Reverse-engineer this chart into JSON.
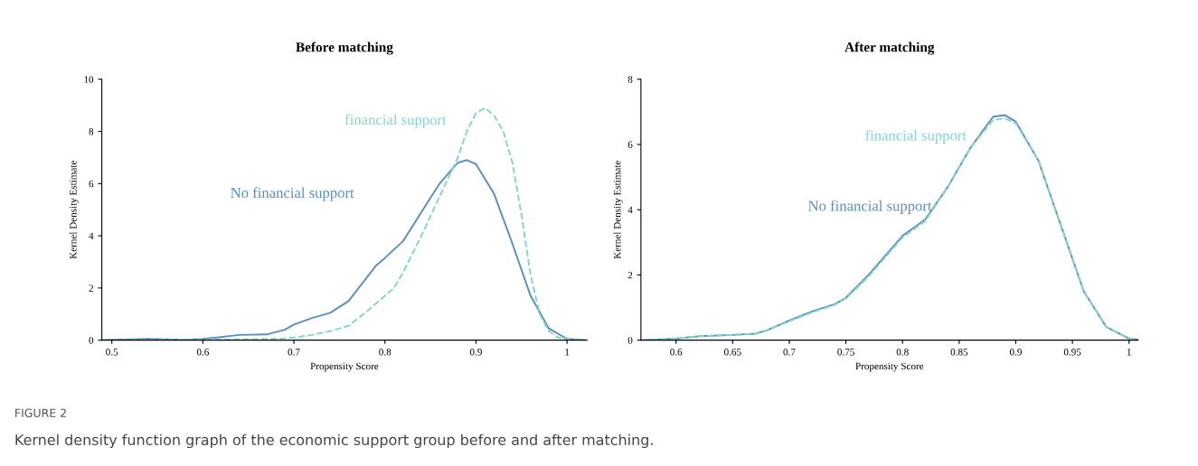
{
  "chart_data": [
    {
      "type": "line",
      "title": "Before matching",
      "xlabel": "Propensity Score",
      "ylabel": "Kernel Density Estimate",
      "xlim": [
        0.489,
        1.022
      ],
      "ylim": [
        0,
        10
      ],
      "xticks": [
        0.5,
        0.6,
        0.7,
        0.8,
        0.9,
        1
      ],
      "yticks": [
        0,
        2,
        4,
        6,
        8,
        10
      ],
      "grid": false,
      "marker": "none",
      "series": [
        {
          "name": "No financial support",
          "color": "#5b8fc2",
          "line_style": "solid",
          "x": [
            0.49,
            0.5,
            0.54,
            0.58,
            0.6,
            0.62,
            0.64,
            0.67,
            0.69,
            0.7,
            0.72,
            0.74,
            0.76,
            0.78,
            0.79,
            0.8,
            0.82,
            0.84,
            0.86,
            0.88,
            0.89,
            0.9,
            0.92,
            0.94,
            0.96,
            0.98,
            1.0,
            1.02
          ],
          "values": [
            0.0,
            0.02,
            0.05,
            0.02,
            0.05,
            0.12,
            0.2,
            0.22,
            0.4,
            0.6,
            0.85,
            1.05,
            1.5,
            2.4,
            2.85,
            3.15,
            3.8,
            4.9,
            6.0,
            6.8,
            6.9,
            6.75,
            5.6,
            3.7,
            1.7,
            0.45,
            0.05,
            0.0
          ]
        },
        {
          "name": "financial support",
          "color": "#84d6c9",
          "line_style": "dashed",
          "x": [
            0.49,
            0.6,
            0.68,
            0.7,
            0.72,
            0.74,
            0.76,
            0.78,
            0.8,
            0.81,
            0.82,
            0.84,
            0.86,
            0.88,
            0.89,
            0.9,
            0.91,
            0.92,
            0.93,
            0.94,
            0.95,
            0.96,
            0.97,
            0.98,
            0.99,
            1.0,
            1.02
          ],
          "values": [
            0.0,
            0.02,
            0.05,
            0.1,
            0.2,
            0.35,
            0.55,
            1.1,
            1.7,
            2.0,
            2.6,
            4.0,
            5.5,
            7.0,
            8.0,
            8.7,
            8.9,
            8.6,
            8.0,
            6.8,
            4.8,
            2.5,
            1.0,
            0.35,
            0.1,
            0.03,
            0.0
          ]
        }
      ],
      "annotations": [
        "FIGURE 2",
        "Kernel density function graph of the economic support group before and after matching."
      ]
    },
    {
      "type": "line",
      "title": "After matching",
      "xlabel": "Propensity Score",
      "ylabel": "Kernel Density Estimate",
      "xlim": [
        0.569,
        1.008
      ],
      "ylim": [
        0,
        8
      ],
      "xticks": [
        0.6,
        0.65,
        0.7,
        0.75,
        0.8,
        0.85,
        0.9,
        0.95,
        1
      ],
      "yticks": [
        0,
        2,
        4,
        6,
        8
      ],
      "grid": false,
      "marker": "none",
      "series": [
        {
          "name": "No financial support",
          "color": "#5b8fc2",
          "line_style": "solid",
          "x": [
            0.57,
            0.6,
            0.62,
            0.65,
            0.67,
            0.68,
            0.7,
            0.72,
            0.74,
            0.75,
            0.77,
            0.79,
            0.8,
            0.82,
            0.84,
            0.86,
            0.88,
            0.89,
            0.9,
            0.92,
            0.94,
            0.96,
            0.98,
            1.0,
            1.008
          ],
          "values": [
            0.0,
            0.05,
            0.12,
            0.16,
            0.2,
            0.3,
            0.6,
            0.88,
            1.1,
            1.3,
            2.0,
            2.8,
            3.2,
            3.7,
            4.7,
            5.9,
            6.85,
            6.9,
            6.7,
            5.5,
            3.5,
            1.5,
            0.4,
            0.05,
            0.02
          ]
        },
        {
          "name": "financial support",
          "color": "#84d6c9",
          "line_style": "dashed",
          "x": [
            0.57,
            0.6,
            0.62,
            0.65,
            0.67,
            0.68,
            0.7,
            0.72,
            0.74,
            0.75,
            0.77,
            0.79,
            0.8,
            0.82,
            0.84,
            0.86,
            0.88,
            0.89,
            0.9,
            0.92,
            0.94,
            0.96,
            0.98,
            1.0,
            1.008
          ],
          "values": [
            0.0,
            0.05,
            0.12,
            0.16,
            0.2,
            0.3,
            0.58,
            0.85,
            1.08,
            1.28,
            1.95,
            2.75,
            3.15,
            3.65,
            4.7,
            5.9,
            6.75,
            6.8,
            6.65,
            5.5,
            3.5,
            1.5,
            0.4,
            0.05,
            0.02
          ]
        }
      ]
    }
  ]
}
